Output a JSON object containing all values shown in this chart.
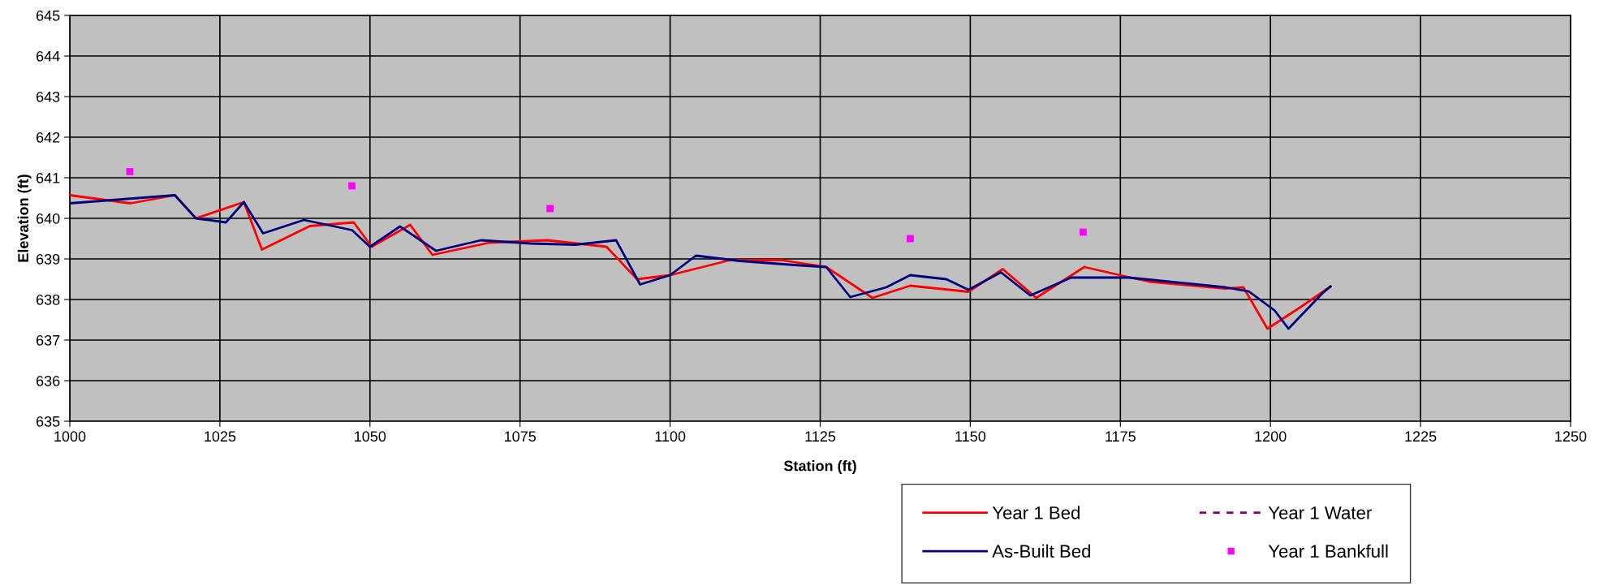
{
  "chart_data": {
    "type": "line",
    "xlabel": "Station (ft)",
    "ylabel": "Elevation (ft)",
    "xlim": [
      1000,
      1250
    ],
    "xticks": [
      1000,
      1025,
      1050,
      1075,
      1100,
      1125,
      1150,
      1175,
      1200,
      1225,
      1250
    ],
    "ylim": [
      635,
      645
    ],
    "yticks": [
      635,
      636,
      637,
      638,
      639,
      640,
      641,
      642,
      643,
      644,
      645
    ],
    "grid": true,
    "legend": "bottom right",
    "series": [
      {
        "name": "Year 1 Bed",
        "color": "#ff0000",
        "line_style": "solid",
        "marker": "none",
        "x": [
          1000,
          1010.1,
          1017.5,
          1021,
          1029,
          1032,
          1040,
          1047.3,
          1050.3,
          1056.7,
          1060.4,
          1069.9,
          1079.6,
          1089.4,
          1094.5,
          1100,
          1110,
          1118.5,
          1126,
          1133.7,
          1140,
          1149.7,
          1155.4,
          1161,
          1169,
          1176.7,
          1179.8,
          1192.5,
          1195.5,
          1199.5,
          1205,
          1210
        ],
        "values": [
          640.57,
          640.37,
          640.57,
          640.0,
          640.4,
          639.23,
          639.81,
          639.9,
          639.3,
          639.84,
          639.1,
          639.4,
          639.46,
          639.3,
          638.5,
          638.6,
          638.97,
          638.97,
          638.8,
          638.04,
          638.34,
          638.19,
          638.75,
          638.04,
          638.8,
          638.54,
          638.44,
          638.27,
          638.3,
          637.28,
          637.81,
          638.32
        ]
      },
      {
        "name": "Year 1 Water",
        "color": "#800080",
        "line_style": "dotted",
        "marker": "none"
      },
      {
        "name": "As-Built Bed",
        "color": "#000080",
        "line_style": "solid",
        "marker": "none",
        "x": [
          1000,
          1017.5,
          1021,
          1026,
          1029,
          1032.2,
          1039,
          1047,
          1050,
          1055,
          1061,
          1068.5,
          1076.8,
          1084.2,
          1091,
          1095,
          1100,
          1104.3,
          1111.6,
          1120.7,
          1126,
          1130,
          1136,
          1140,
          1146,
          1149.7,
          1155.1,
          1160,
          1166.8,
          1176.4,
          1192.5,
          1196.4,
          1200.7,
          1203,
          1208.7,
          1210
        ],
        "values": [
          640.37,
          640.57,
          640.0,
          639.9,
          640.4,
          639.63,
          639.96,
          639.71,
          639.3,
          639.8,
          639.2,
          639.46,
          639.38,
          639.35,
          639.46,
          638.37,
          638.6,
          639.08,
          638.95,
          638.85,
          638.8,
          638.06,
          638.3,
          638.6,
          638.5,
          638.24,
          638.67,
          638.1,
          638.54,
          638.54,
          638.3,
          638.2,
          637.73,
          637.28,
          638.16,
          638.32
        ]
      },
      {
        "name": "Year 1 Bankfull",
        "type": "scatter",
        "color": "#ff00ff",
        "marker": "square",
        "x": [
          1010,
          1047,
          1080,
          1140,
          1168.8
        ],
        "values": [
          641.15,
          640.8,
          640.24,
          639.5,
          639.66
        ]
      }
    ]
  }
}
